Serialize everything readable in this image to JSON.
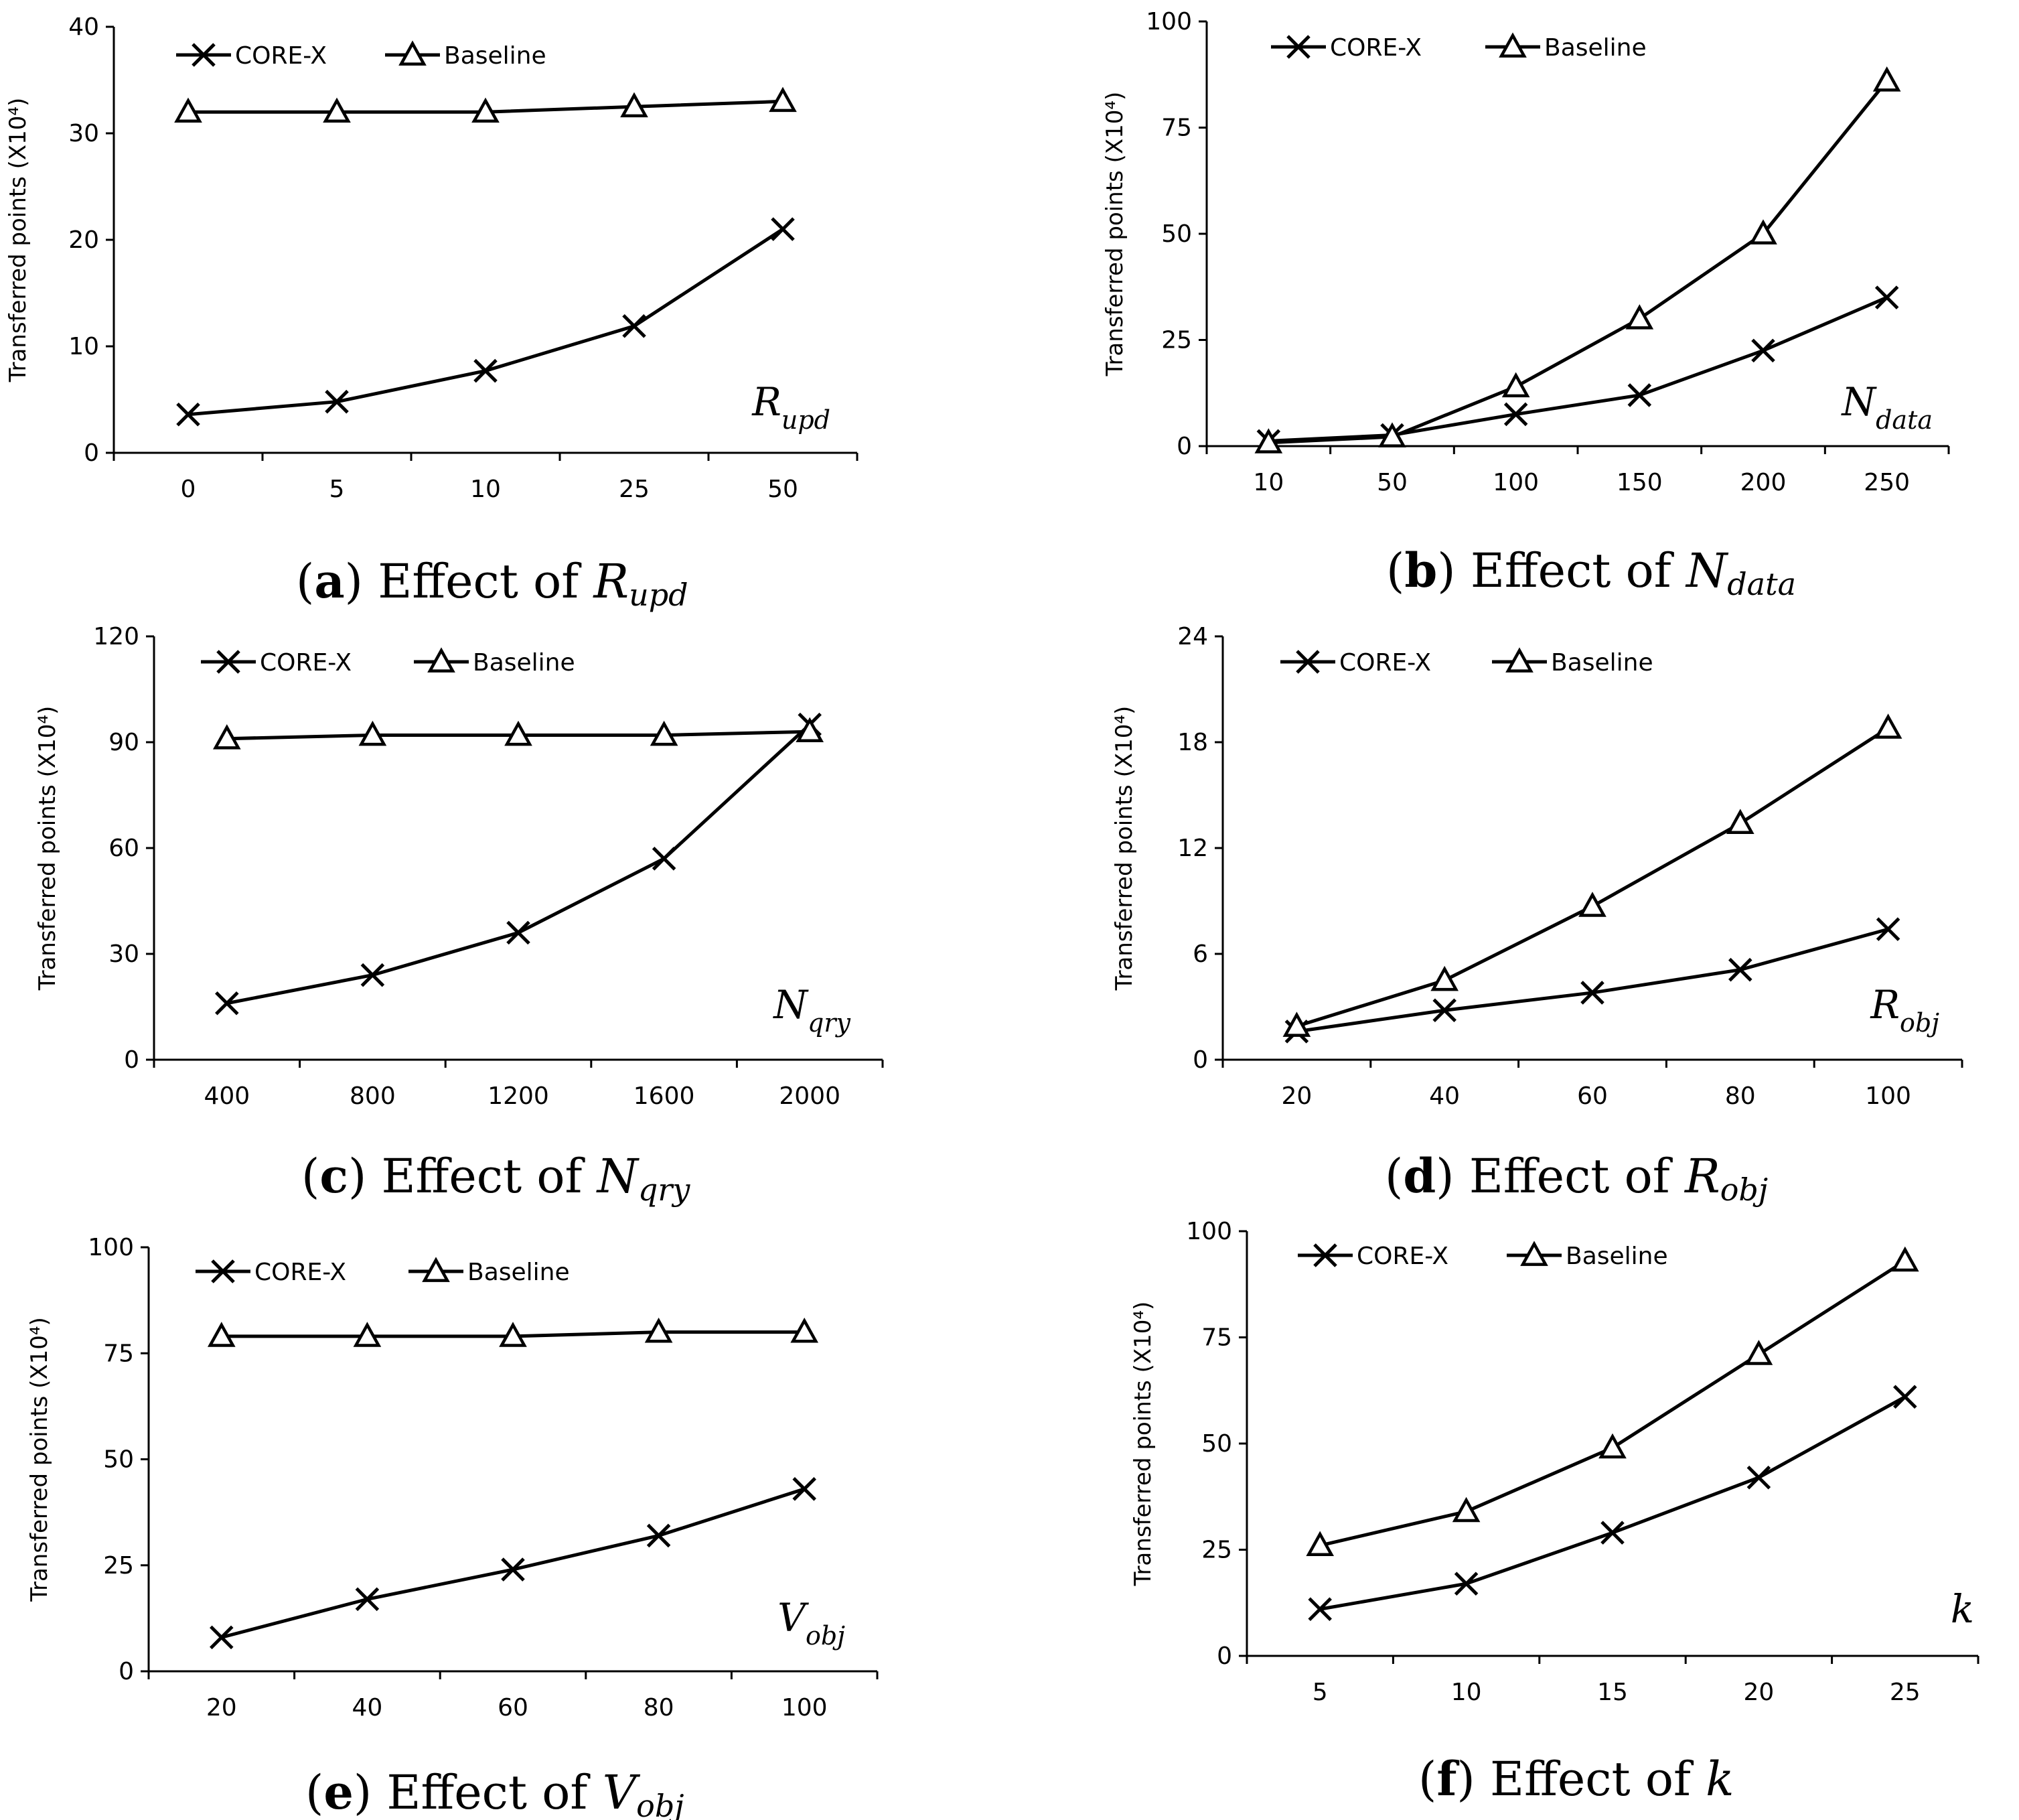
{
  "chart_data": [
    {
      "type": "line",
      "panel": "a",
      "title": "Effect of R_upd",
      "caption": {
        "letter": "a",
        "text": "Effect of",
        "param_main": "R",
        "param_sub": "upd"
      },
      "ylabel": "Transferred points (X10⁴)",
      "xlabel": {
        "main": "R",
        "sub": "upd"
      },
      "categories": [
        "0",
        "5",
        "10",
        "25",
        "50"
      ],
      "ylim": [
        0,
        40
      ],
      "yticks": [
        "0",
        "10",
        "20",
        "30",
        "40"
      ],
      "series": [
        {
          "name": "CORE-X",
          "marker": "x",
          "values": [
            3.6,
            4.8,
            7.7,
            11.9,
            21
          ]
        },
        {
          "name": "Baseline",
          "marker": "triangle",
          "values": [
            32,
            32,
            32,
            32.5,
            33
          ]
        }
      ]
    },
    {
      "type": "line",
      "panel": "b",
      "title": "Effect of N_data",
      "caption": {
        "letter": "b",
        "text": "Effect of",
        "param_main": "N",
        "param_sub": "data"
      },
      "ylabel": "Transferred points (X10⁴)",
      "xlabel": {
        "main": "N",
        "sub": "data"
      },
      "categories": [
        "10",
        "50",
        "100",
        "150",
        "200",
        "250"
      ],
      "ylim": [
        0,
        100
      ],
      "yticks": [
        "0",
        "25",
        "50",
        "75",
        "100"
      ],
      "series": [
        {
          "name": "CORE-X",
          "marker": "x",
          "values": [
            1.2,
            2.6,
            7.5,
            12,
            22.5,
            35
          ]
        },
        {
          "name": "Baseline",
          "marker": "triangle",
          "values": [
            0.8,
            2.2,
            14,
            30,
            50,
            86
          ]
        }
      ]
    },
    {
      "type": "line",
      "panel": "c",
      "title": "Effect of N_qry",
      "caption": {
        "letter": "c",
        "text": "Effect of",
        "param_main": "N",
        "param_sub": "qry"
      },
      "ylabel": "Transferred points (X10⁴)",
      "xlabel": {
        "main": "N",
        "sub": "qry"
      },
      "categories": [
        "400",
        "800",
        "1200",
        "1600",
        "2000"
      ],
      "ylim": [
        0,
        120
      ],
      "yticks": [
        "0",
        "30",
        "60",
        "90",
        "120"
      ],
      "series": [
        {
          "name": "CORE-X",
          "marker": "x",
          "values": [
            16,
            24,
            36,
            57,
            95
          ]
        },
        {
          "name": "Baseline",
          "marker": "triangle",
          "values": [
            91,
            92,
            92,
            92,
            93
          ]
        }
      ]
    },
    {
      "type": "line",
      "panel": "d",
      "title": "Effect of R_obj",
      "caption": {
        "letter": "d",
        "text": "Effect of",
        "param_main": "R",
        "param_sub": "obj"
      },
      "ylabel": "Transferred points (X10⁴)",
      "xlabel": {
        "main": "R",
        "sub": "obj"
      },
      "categories": [
        "20",
        "40",
        "60",
        "80",
        "100"
      ],
      "ylim": [
        0,
        24
      ],
      "yticks": [
        "0",
        "6",
        "12",
        "18",
        "24"
      ],
      "series": [
        {
          "name": "CORE-X",
          "marker": "x",
          "values": [
            1.6,
            2.8,
            3.8,
            5.1,
            7.4
          ]
        },
        {
          "name": "Baseline",
          "marker": "triangle",
          "values": [
            1.9,
            4.5,
            8.7,
            13.4,
            18.8
          ]
        }
      ]
    },
    {
      "type": "line",
      "panel": "e",
      "title": "Effect of V_obj",
      "caption": {
        "letter": "e",
        "text": "Effect of",
        "param_main": "V",
        "param_sub": "obj"
      },
      "ylabel": "Transferred points (X10⁴)",
      "xlabel": {
        "main": "V",
        "sub": "obj"
      },
      "categories": [
        "20",
        "40",
        "60",
        "80",
        "100"
      ],
      "ylim": [
        0,
        100
      ],
      "yticks": [
        "0",
        "25",
        "50",
        "75",
        "100"
      ],
      "series": [
        {
          "name": "CORE-X",
          "marker": "x",
          "values": [
            8,
            17,
            24,
            32,
            43
          ]
        },
        {
          "name": "Baseline",
          "marker": "triangle",
          "values": [
            79,
            79,
            79,
            80,
            80
          ]
        }
      ]
    },
    {
      "type": "line",
      "panel": "f",
      "title": "Effect of k",
      "caption": {
        "letter": "f",
        "text": "Effect of",
        "param_main": "k",
        "param_sub": ""
      },
      "ylabel": "Transferred points (X10⁴)",
      "xlabel": {
        "main": "k",
        "sub": ""
      },
      "categories": [
        "5",
        "10",
        "15",
        "20",
        "25"
      ],
      "ylim": [
        0,
        100
      ],
      "yticks": [
        "0",
        "25",
        "50",
        "75",
        "100"
      ],
      "series": [
        {
          "name": "CORE-X",
          "marker": "x",
          "values": [
            11,
            17,
            29,
            42,
            61
          ]
        },
        {
          "name": "Baseline",
          "marker": "triangle",
          "values": [
            26,
            34,
            49,
            71,
            93
          ]
        }
      ]
    }
  ]
}
